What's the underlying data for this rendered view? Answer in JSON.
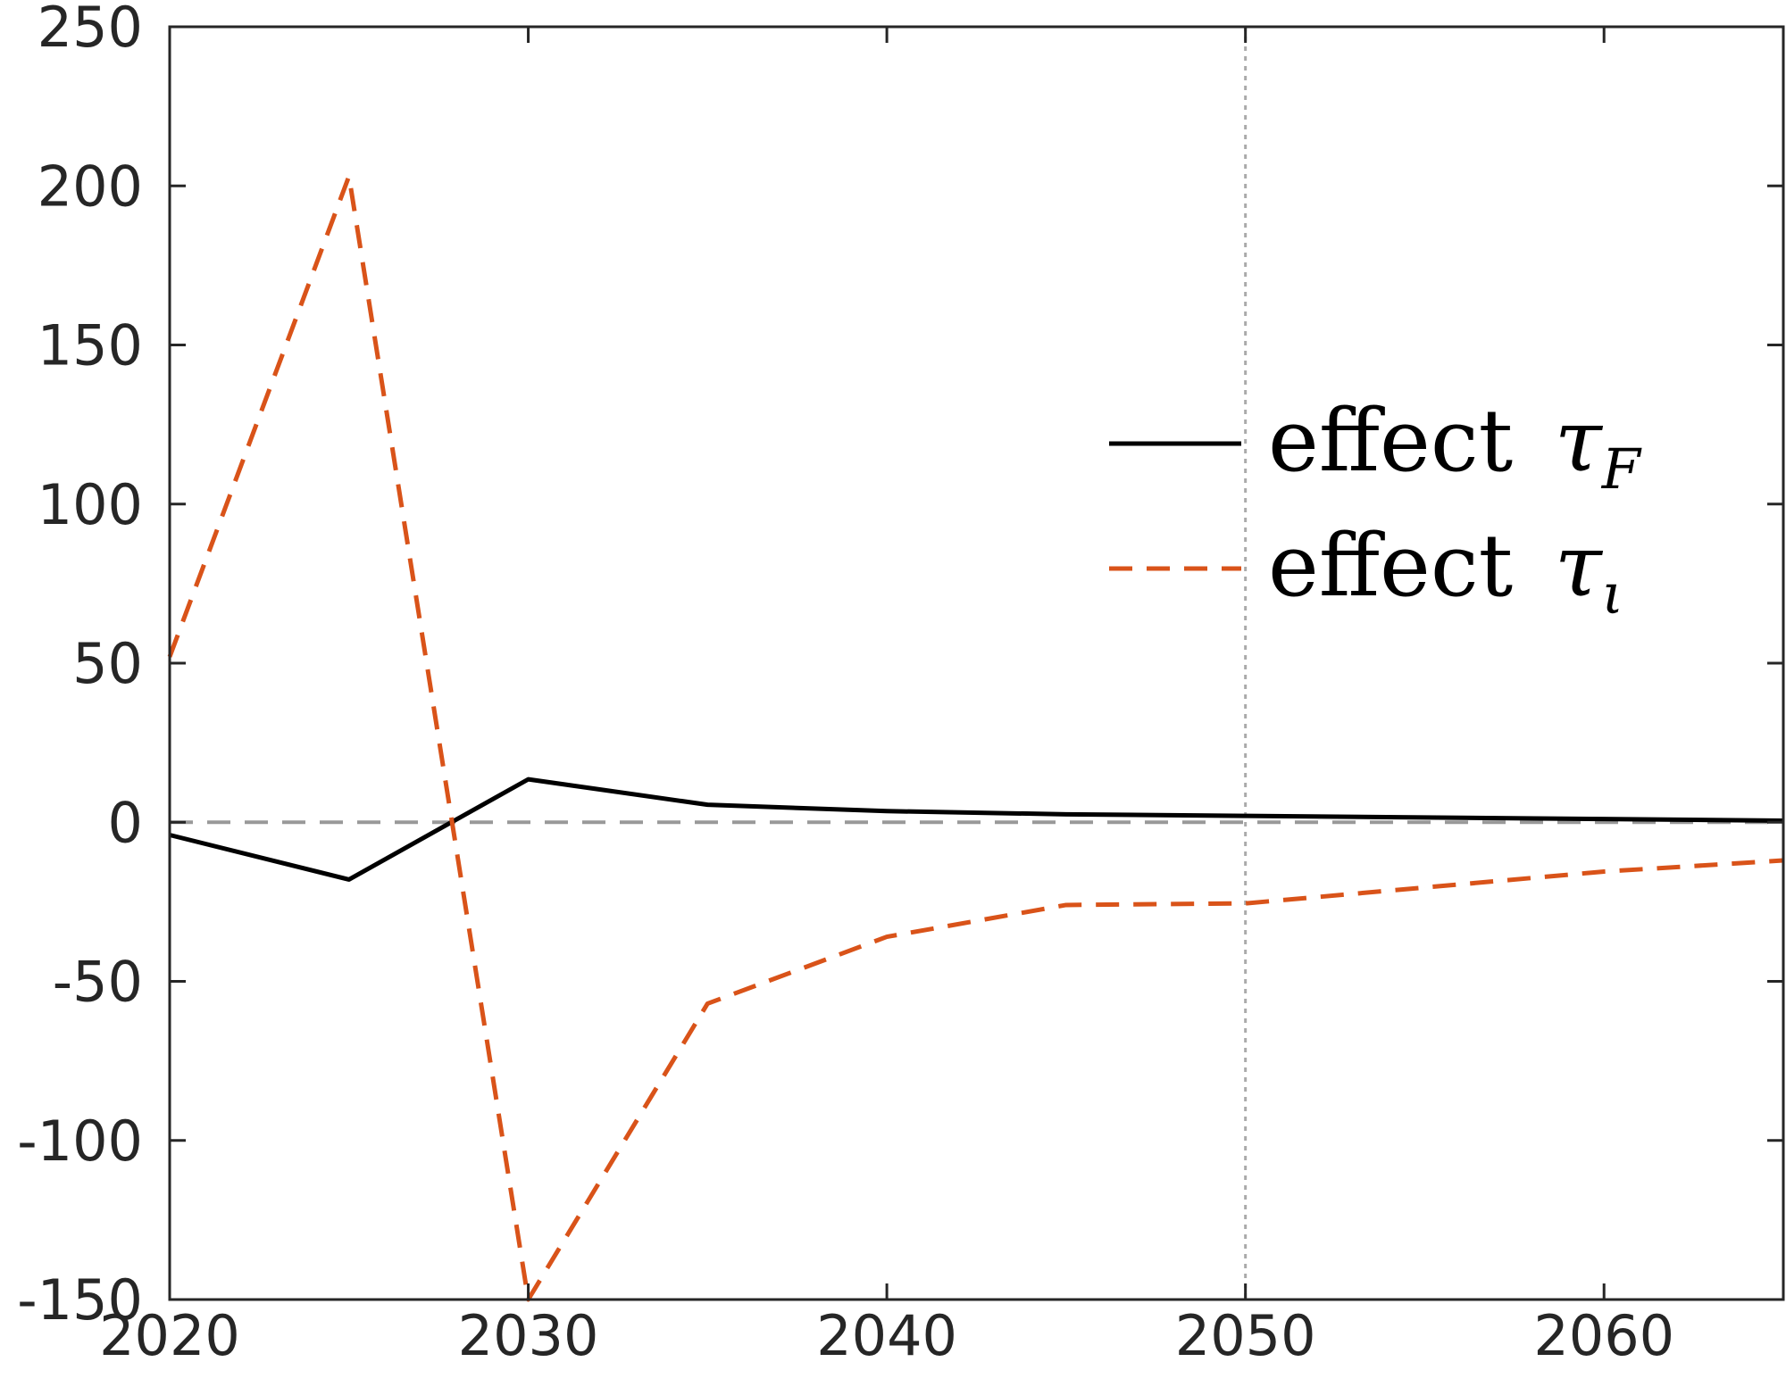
{
  "chart_data": {
    "type": "line",
    "title": "",
    "xlabel": "",
    "ylabel": "",
    "xlim": [
      2020,
      2065
    ],
    "ylim": [
      -150,
      250
    ],
    "xticks": [
      2020,
      2030,
      2040,
      2050,
      2060
    ],
    "xtick_labels": [
      "2020",
      "2030",
      "2040",
      "2050",
      "2060"
    ],
    "yticks": [
      -150,
      -100,
      -50,
      0,
      50,
      100,
      150,
      200,
      250
    ],
    "ytick_labels": [
      "-150",
      "-100",
      "-50",
      "0",
      "50",
      "100",
      "150",
      "200",
      "250"
    ],
    "grid": false,
    "legend_position": "center-right",
    "reference_lines": [
      {
        "orientation": "horizontal",
        "value": 0,
        "style": "dashed",
        "color": "#999999"
      },
      {
        "orientation": "vertical",
        "value": 2050,
        "style": "dotted",
        "color": "#aaaaaa"
      }
    ],
    "series": [
      {
        "name": "effect τF",
        "legend_text": "effect",
        "legend_symbol": "τ",
        "legend_subscript": "F",
        "color": "#000000",
        "style": "solid",
        "x": [
          2020,
          2025,
          2030,
          2035,
          2040,
          2045,
          2050,
          2055,
          2060,
          2065
        ],
        "y": [
          -4,
          -18,
          13.5,
          5.5,
          3.5,
          2.5,
          2,
          1.5,
          1,
          0.5
        ]
      },
      {
        "name": "effect τι",
        "legend_text": "effect",
        "legend_symbol": "τ",
        "legend_subscript": "ι",
        "color": "#d95319",
        "style": "dashed",
        "x": [
          2020,
          2025,
          2030,
          2035,
          2040,
          2045,
          2050,
          2055,
          2060,
          2065
        ],
        "y": [
          52,
          203,
          -150,
          -57,
          -36,
          -26,
          -25.5,
          -20.5,
          -15.5,
          -12
        ]
      }
    ]
  }
}
